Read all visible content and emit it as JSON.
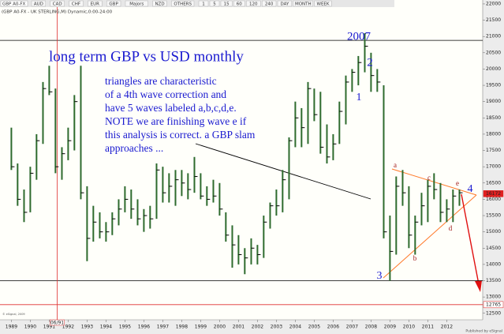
{
  "toolbar": {
    "symbol": "GBP A0-FX",
    "buttons": [
      "AUD",
      "CAD",
      "CHF",
      "EUR",
      "GBP",
      "Majors",
      "NZD",
      "OTHERS",
      "1",
      "5",
      "15",
      "60",
      "120",
      "240",
      "DAY",
      "MONTH",
      "WEEK"
    ]
  },
  "chart_data": {
    "type": "ohlc",
    "title": "(GBP A0-FX - UK STERLING,M) Dynamic,0:00-24:00",
    "x": [
      1989.0,
      1989.33,
      1989.67,
      1990.0,
      1990.33,
      1990.67,
      1991.0,
      1991.33,
      1991.67,
      1992.0,
      1992.33,
      1992.67,
      1993.0,
      1993.33,
      1993.67,
      1994.0,
      1994.33,
      1994.67,
      1995.0,
      1995.33,
      1995.67,
      1996.0,
      1996.33,
      1996.67,
      1997.0,
      1997.33,
      1997.67,
      1998.0,
      1998.33,
      1998.67,
      1999.0,
      1999.33,
      1999.67,
      2000.0,
      2000.33,
      2000.67,
      2001.0,
      2001.33,
      2001.67,
      2002.0,
      2002.33,
      2002.67,
      2003.0,
      2003.33,
      2003.67,
      2004.0,
      2004.33,
      2004.67,
      2005.0,
      2005.33,
      2005.67,
      2006.0,
      2006.33,
      2006.67,
      2007.0,
      2007.33,
      2007.67,
      2008.0,
      2008.33,
      2008.67,
      2009.0,
      2009.33,
      2009.67,
      2010.0,
      2010.33,
      2010.67,
      2011.0,
      2011.33,
      2011.67,
      2012.0,
      2012.33,
      2012.67
    ],
    "high": [
      18200,
      17100,
      16300,
      17000,
      18000,
      19600,
      20100,
      19400,
      17600,
      18200,
      19200,
      20100,
      16400,
      15800,
      15600,
      15300,
      15600,
      16000,
      16400,
      16300,
      16000,
      15700,
      15800,
      17100,
      17000,
      16800,
      16900,
      16900,
      16800,
      17300,
      16800,
      16400,
      16600,
      16500,
      15600,
      15200,
      14900,
      14500,
      14800,
      14600,
      15500,
      15900,
      16300,
      16900,
      17900,
      19000,
      18800,
      19600,
      19400,
      19300,
      18300,
      18000,
      19000,
      19800,
      20000,
      20400,
      21100,
      20500,
      20000,
      19500,
      15500,
      16700,
      16900,
      16400,
      15500,
      16200,
      16600,
      16800,
      16500,
      16000,
      16300,
      16300
    ],
    "low": [
      16900,
      15800,
      15300,
      15600,
      16600,
      17700,
      19200,
      16800,
      16600,
      17200,
      17500,
      16000,
      14100,
      14700,
      14800,
      14700,
      14900,
      15200,
      15600,
      15400,
      15200,
      15000,
      15100,
      15400,
      15900,
      15900,
      15800,
      16100,
      16000,
      16200,
      16000,
      15800,
      15900,
      15500,
      14700,
      13900,
      14000,
      13700,
      14000,
      14000,
      14200,
      15100,
      15500,
      15600,
      16000,
      17600,
      17600,
      17700,
      18400,
      17400,
      17100,
      17200,
      17700,
      18300,
      19300,
      19500,
      19900,
      19300,
      19300,
      14800,
      13500,
      14300,
      15800,
      14500,
      14300,
      15200,
      15300,
      16000,
      15300,
      15300,
      15300,
      15800
    ],
    "close": [
      17000,
      16000,
      15600,
      16800,
      17800,
      19400,
      19300,
      17000,
      17400,
      17800,
      19000,
      16200,
      14800,
      15300,
      15000,
      15000,
      15400,
      15700,
      16000,
      15700,
      15400,
      15500,
      15400,
      16900,
      16200,
      16400,
      16600,
      16500,
      16300,
      16700,
      16100,
      16000,
      16100,
      15700,
      14900,
      14600,
      14300,
      14200,
      14500,
      14300,
      15300,
      15800,
      15800,
      16600,
      17800,
      18500,
      18200,
      19400,
      18600,
      17600,
      17300,
      17700,
      18700,
      19600,
      19900,
      20200,
      20700,
      19800,
      19600,
      15000,
      14400,
      16400,
      16200,
      14900,
      15300,
      15800,
      16400,
      16300,
      15600,
      15700,
      16100,
      16200
    ],
    "color": "#2e6b2e",
    "xlim": [
      1988.4,
      2013.9
    ],
    "xticks": [
      1989,
      1990,
      1991,
      1992,
      1993,
      1994,
      1995,
      1996,
      1997,
      1998,
      1999,
      2000,
      2001,
      2002,
      2003,
      2004,
      2005,
      2006,
      2007,
      2008,
      2009,
      2010,
      2011,
      2012
    ],
    "ylim": [
      12300,
      22120
    ],
    "yticks": [
      22000,
      21500,
      21000,
      20500,
      20000,
      19500,
      19000,
      18500,
      18000,
      17500,
      17000,
      16500,
      16000,
      15500,
      15000,
      14500,
      14000,
      13500,
      13000,
      12500
    ],
    "hlines": [
      20880,
      13500
    ],
    "price_tags": [
      16172,
      12765
    ],
    "vline": {
      "value": 1991.42,
      "label": "06/91"
    },
    "annotation_title": "long term GBP vs USD monthly",
    "annotation": [
      "triangles are characteristic",
      "of a 4th wave correction and",
      "have 5 waves labeled a,b,c,d,e.",
      "NOTE we are finishing wave e if",
      "this analysis is correct.  a GBP slam",
      "approaches ..."
    ],
    "wave_labels": [
      "2007",
      "2",
      "1",
      "3",
      "4",
      "a",
      "b",
      "c",
      "d",
      "e"
    ],
    "copyright": "© eSignal, 2009",
    "publisher": "Published by eSignal"
  }
}
